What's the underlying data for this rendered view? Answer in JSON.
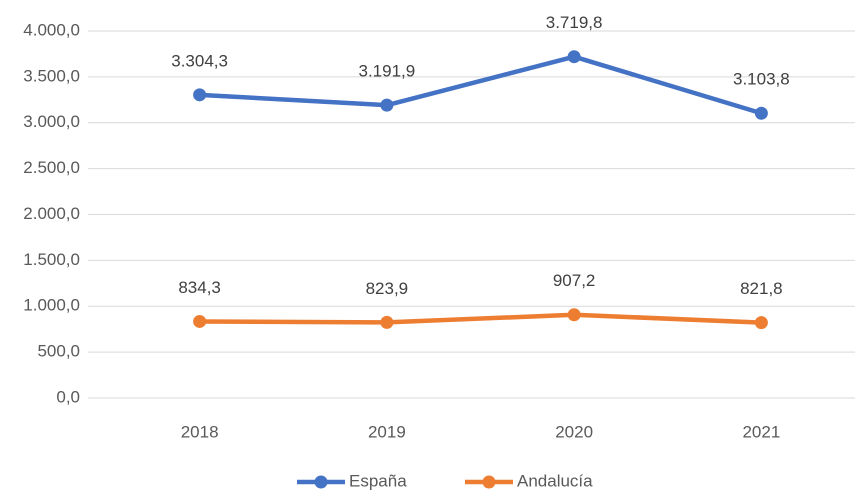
{
  "chart_data": {
    "type": "line",
    "categories": [
      "2018",
      "2019",
      "2020",
      "2021"
    ],
    "series": [
      {
        "name": "España",
        "color": "#4472c4",
        "values": [
          3304.3,
          3191.9,
          3719.8,
          3103.8
        ],
        "value_labels": [
          "3.304,3",
          "3.191,9",
          "3.719,8",
          "3.103,8"
        ]
      },
      {
        "name": "Andalucía",
        "color": "#ed7d31",
        "values": [
          834.3,
          823.9,
          907.2,
          821.8
        ],
        "value_labels": [
          "834,3",
          "823,9",
          "907,2",
          "821,8"
        ]
      }
    ],
    "ylim": [
      0,
      4000
    ],
    "yticks": [
      {
        "value": 0,
        "label": "0,0"
      },
      {
        "value": 500,
        "label": "500,0"
      },
      {
        "value": 1000,
        "label": "1.000,0"
      },
      {
        "value": 1500,
        "label": "1.500,0"
      },
      {
        "value": 2000,
        "label": "2.000,0"
      },
      {
        "value": 2500,
        "label": "2.500,0"
      },
      {
        "value": 3000,
        "label": "3.000,0"
      },
      {
        "value": 3500,
        "label": "3.500,0"
      },
      {
        "value": 4000,
        "label": "4.000,0"
      }
    ],
    "grid": true,
    "legend": "bottom"
  }
}
